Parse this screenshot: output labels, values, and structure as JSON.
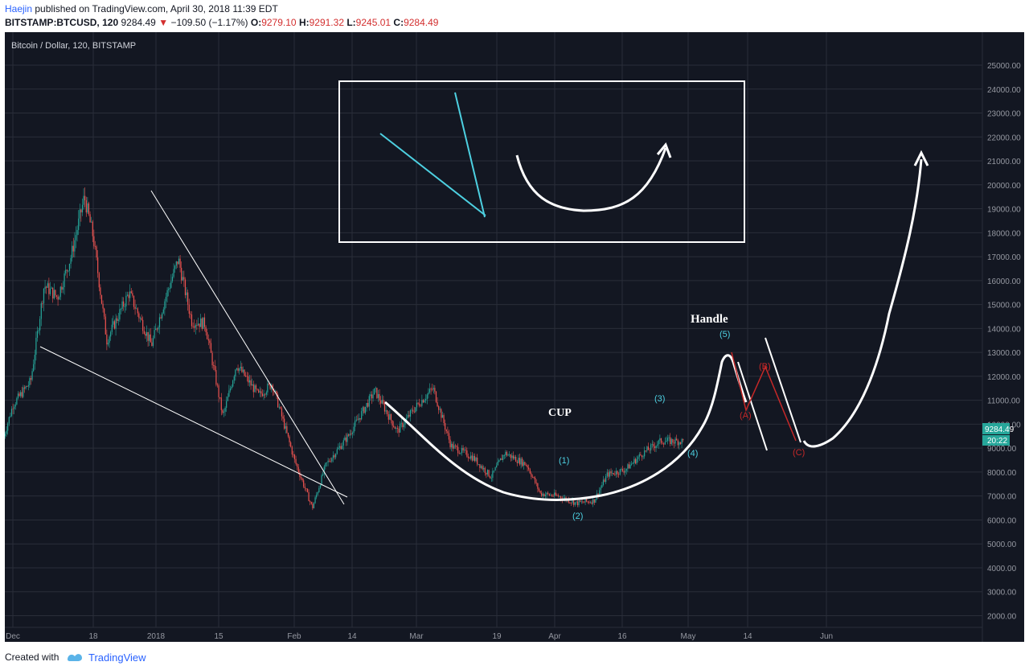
{
  "header": {
    "author": "Haejin",
    "published_text": "published on TradingView.com, April 30, 2018 11:39 EDT",
    "symbol_line": "BITSTAMP:BTCUSD, 120",
    "last_price": "9284.49",
    "change_text": "−109.50 (−1.17%)",
    "open_label": "O:",
    "open_value": "9279.10",
    "high_label": "H:",
    "high_value": "9291.32",
    "low_label": "L:",
    "low_value": "9245.01",
    "close_label": "C:",
    "close_value": "9284.49"
  },
  "footer": {
    "created_with": "Created with",
    "brand": "TradingView"
  },
  "colors": {
    "background": "#131722",
    "grid": "#2a2e39",
    "axis_text": "#9598a1",
    "candle_up": "#26a69a",
    "candle_down": "#ef5350",
    "drawing_white": "#ffffff",
    "drawing_cyan": "#4dd0e1",
    "drawing_red": "#c62828",
    "price_label_bg": "#26a69a",
    "brand_blue": "#2962ff"
  },
  "chart_data": {
    "type": "candlestick",
    "title": "Bitcoin / Dollar, 120, BITSTAMP",
    "ylim": [
      1000,
      26000
    ],
    "y_ticks": [
      "2000.00",
      "3000.00",
      "4000.00",
      "5000.00",
      "6000.00",
      "7000.00",
      "8000.00",
      "9000.00",
      "10000.00",
      "11000.00",
      "12000.00",
      "13000.00",
      "14000.00",
      "15000.00",
      "16000.00",
      "17000.00",
      "18000.00",
      "19000.00",
      "20000.00",
      "21000.00",
      "22000.00",
      "23000.00",
      "24000.00",
      "25000.00"
    ],
    "x_ticks": [
      "Dec",
      "18",
      "2018",
      "15",
      "Feb",
      "14",
      "Mar",
      "19",
      "Apr",
      "16",
      "May",
      "14",
      "Jun"
    ],
    "current_price_label": "9284.49",
    "countdown_label": "20:22",
    "price_path": [
      {
        "date": "2017-11-29",
        "price": 9500
      },
      {
        "date": "2017-12-01",
        "price": 10800
      },
      {
        "date": "2017-12-05",
        "price": 11800
      },
      {
        "date": "2017-12-08",
        "price": 15800
      },
      {
        "date": "2017-12-11",
        "price": 15300
      },
      {
        "date": "2017-12-14",
        "price": 17000
      },
      {
        "date": "2017-12-17",
        "price": 19500
      },
      {
        "date": "2017-12-19",
        "price": 17800
      },
      {
        "date": "2017-12-22",
        "price": 13500
      },
      {
        "date": "2017-12-27",
        "price": 15500
      },
      {
        "date": "2018-01-01",
        "price": 13300
      },
      {
        "date": "2018-01-04",
        "price": 15200
      },
      {
        "date": "2018-01-07",
        "price": 16900
      },
      {
        "date": "2018-01-10",
        "price": 14300
      },
      {
        "date": "2018-01-13",
        "price": 14200
      },
      {
        "date": "2018-01-17",
        "price": 10300
      },
      {
        "date": "2018-01-20",
        "price": 12500
      },
      {
        "date": "2018-01-25",
        "price": 11200
      },
      {
        "date": "2018-01-28",
        "price": 11700
      },
      {
        "date": "2018-02-02",
        "price": 8500
      },
      {
        "date": "2018-02-06",
        "price": 6500
      },
      {
        "date": "2018-02-09",
        "price": 8300
      },
      {
        "date": "2018-02-14",
        "price": 9500
      },
      {
        "date": "2018-02-20",
        "price": 11400
      },
      {
        "date": "2018-02-25",
        "price": 9700
      },
      {
        "date": "2018-03-01",
        "price": 10700
      },
      {
        "date": "2018-03-05",
        "price": 11500
      },
      {
        "date": "2018-03-09",
        "price": 9100
      },
      {
        "date": "2018-03-14",
        "price": 8600
      },
      {
        "date": "2018-03-18",
        "price": 7800
      },
      {
        "date": "2018-03-21",
        "price": 8800
      },
      {
        "date": "2018-03-26",
        "price": 8300
      },
      {
        "date": "2018-03-29",
        "price": 7100
      },
      {
        "date": "2018-04-02",
        "price": 7000
      },
      {
        "date": "2018-04-06",
        "price": 6700
      },
      {
        "date": "2018-04-10",
        "price": 6800
      },
      {
        "date": "2018-04-13",
        "price": 7900
      },
      {
        "date": "2018-04-17",
        "price": 8100
      },
      {
        "date": "2018-04-21",
        "price": 8800
      },
      {
        "date": "2018-04-25",
        "price": 9300
      },
      {
        "date": "2018-04-30",
        "price": 9284
      }
    ],
    "annotations": {
      "cup": "CUP",
      "handle": "Handle",
      "wave_1": "(1)",
      "wave_2": "(2)",
      "wave_3": "(3)",
      "wave_4": "(4)",
      "wave_5": "(5)",
      "wave_a": "(A)",
      "wave_b": "(B)",
      "wave_c": "(C)"
    }
  }
}
